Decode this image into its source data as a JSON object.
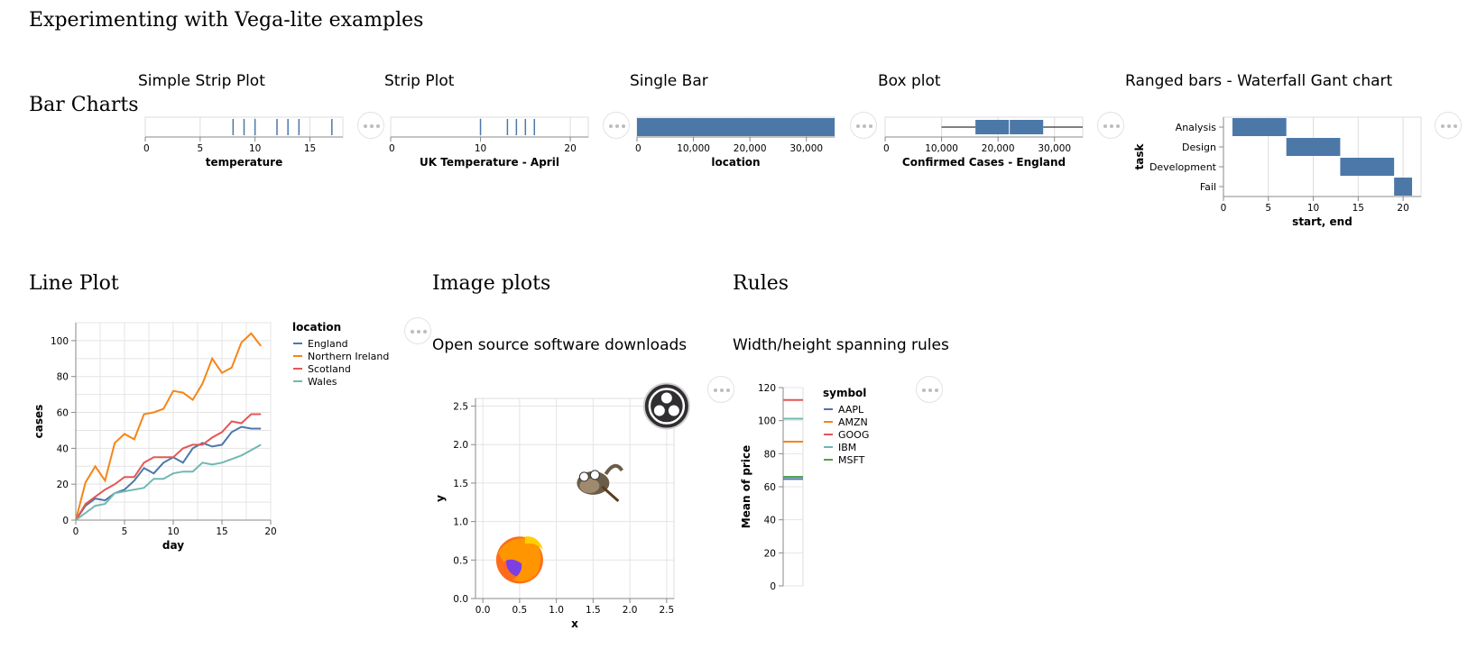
{
  "page": {
    "title": "Experimenting with Vega-lite examples",
    "sections": {
      "bar_charts": "Bar Charts",
      "line_plot": "Line Plot",
      "image_plots": "Image plots",
      "rules": "Rules"
    }
  },
  "chart_titles": {
    "simple_strip": "Simple Strip Plot",
    "strip": "Strip Plot",
    "single_bar": "Single Bar",
    "box": "Box plot",
    "gantt": "Ranged bars - Waterfall Gant chart",
    "images": "Open source software downloads",
    "rules": "Width/height spanning rules"
  },
  "image_names": {
    "obs": "obs-studio-logo",
    "gimp": "gimp-logo",
    "firefox": "firefox-logo"
  },
  "chart_data": [
    {
      "id": "simple_strip",
      "type": "scatter",
      "mark": "tick",
      "xlabel": "temperature",
      "xlim": [
        0,
        18
      ],
      "ticks": [
        0,
        5,
        10,
        15
      ],
      "values": [
        8,
        9,
        10,
        12,
        13,
        14,
        17
      ],
      "color": "#4c78a8"
    },
    {
      "id": "strip",
      "type": "scatter",
      "mark": "tick",
      "xlabel": "UK Temperature - April",
      "xlim": [
        0,
        22
      ],
      "ticks": [
        0,
        10,
        20
      ],
      "values": [
        10,
        13,
        14,
        15,
        16
      ],
      "color": "#4c78a8"
    },
    {
      "id": "single_bar",
      "type": "bar",
      "xlabel": "location",
      "xlim": [
        0,
        35000
      ],
      "ticks": [
        0,
        10000,
        20000,
        30000
      ],
      "tick_labels": [
        "0",
        "10,000",
        "20,000",
        "30,000"
      ],
      "value": 35000,
      "color": "#4c78a8"
    },
    {
      "id": "box",
      "type": "box",
      "xlabel": "Confirmed Cases - England",
      "xlim": [
        0,
        35000
      ],
      "ticks": [
        0,
        10000,
        20000,
        30000
      ],
      "tick_labels": [
        "0",
        "10,000",
        "20,000",
        "30,000"
      ],
      "min": 10000,
      "q1": 16000,
      "median": 22000,
      "q3": 28000,
      "max": 35000,
      "color": "#4c78a8"
    },
    {
      "id": "gantt",
      "type": "bar",
      "mark": "ranged-bar",
      "xlabel": "start, end",
      "ylabel": "task",
      "xlim": [
        0,
        22
      ],
      "ticks": [
        0,
        5,
        10,
        15,
        20
      ],
      "categories": [
        "Analysis",
        "Design",
        "Development",
        "Fail"
      ],
      "starts": [
        1,
        7,
        13,
        19
      ],
      "ends": [
        7,
        13,
        19,
        21
      ],
      "color": "#4c78a8"
    },
    {
      "id": "line",
      "type": "line",
      "xlabel": "day",
      "ylabel": "cases",
      "xlim": [
        0,
        20
      ],
      "ylim": [
        0,
        110
      ],
      "xticks": [
        0,
        5,
        10,
        15,
        20
      ],
      "yticks": [
        0,
        20,
        40,
        60,
        80,
        100
      ],
      "grid": true,
      "legend_title": "location",
      "legend_position": "right",
      "x": [
        0,
        1,
        2,
        3,
        4,
        5,
        6,
        7,
        8,
        9,
        10,
        11,
        12,
        13,
        14,
        15,
        16,
        17,
        18,
        19
      ],
      "series": [
        {
          "name": "England",
          "color": "#4c78a8",
          "values": [
            0,
            8,
            12,
            11,
            15,
            17,
            22,
            29,
            26,
            32,
            35,
            32,
            40,
            43,
            41,
            42,
            49,
            52,
            51,
            51
          ]
        },
        {
          "name": "Northern Ireland",
          "color": "#f58518",
          "values": [
            0,
            21,
            30,
            22,
            43,
            48,
            45,
            59,
            60,
            62,
            72,
            71,
            67,
            76,
            90,
            82,
            85,
            99,
            104,
            97
          ]
        },
        {
          "name": "Scotland",
          "color": "#e45756",
          "values": [
            0,
            9,
            13,
            17,
            20,
            24,
            24,
            32,
            35,
            35,
            35,
            40,
            42,
            42,
            46,
            49,
            55,
            54,
            59,
            59
          ]
        },
        {
          "name": "Wales",
          "color": "#72b7b2",
          "values": [
            0,
            4,
            8,
            9,
            15,
            16,
            17,
            18,
            23,
            23,
            26,
            27,
            27,
            32,
            31,
            32,
            34,
            36,
            39,
            42
          ]
        }
      ]
    },
    {
      "id": "images",
      "type": "scatter",
      "mark": "image",
      "xlabel": "x",
      "ylabel": "y",
      "xlim": [
        -0.1,
        2.6
      ],
      "ylim": [
        0,
        2.6
      ],
      "xticks": [
        0,
        0.5,
        1,
        1.5,
        2,
        2.5
      ],
      "yticks": [
        0,
        0.5,
        1,
        1.5,
        2,
        2.5
      ],
      "tick_labels_x": [
        "0.0",
        "0.5",
        "1.0",
        "1.5",
        "2.0",
        "2.5"
      ],
      "tick_labels_y": [
        "0.0",
        "0.5",
        "1.0",
        "1.5",
        "2.0",
        "2.5"
      ],
      "grid": true,
      "points": [
        {
          "x": 0.5,
          "y": 0.5,
          "image": "firefox"
        },
        {
          "x": 1.5,
          "y": 1.5,
          "image": "gimp"
        },
        {
          "x": 2.5,
          "y": 2.5,
          "image": "obs"
        }
      ]
    },
    {
      "id": "rules",
      "type": "bar",
      "mark": "rule",
      "ylabel": "Mean of price",
      "ylim": [
        0,
        120
      ],
      "yticks": [
        0,
        20,
        40,
        60,
        80,
        100,
        120
      ],
      "legend_title": "symbol",
      "legend_position": "right",
      "series": [
        {
          "name": "AAPL",
          "color": "#4c78a8",
          "value": 64.7
        },
        {
          "name": "AMZN",
          "color": "#f58518",
          "value": 87.3
        },
        {
          "name": "GOOG",
          "color": "#e45756",
          "value": 112.5
        },
        {
          "name": "IBM",
          "color": "#72b7b2",
          "value": 101.2
        },
        {
          "name": "MSFT",
          "color": "#54a24b",
          "value": 66.0
        }
      ]
    }
  ]
}
